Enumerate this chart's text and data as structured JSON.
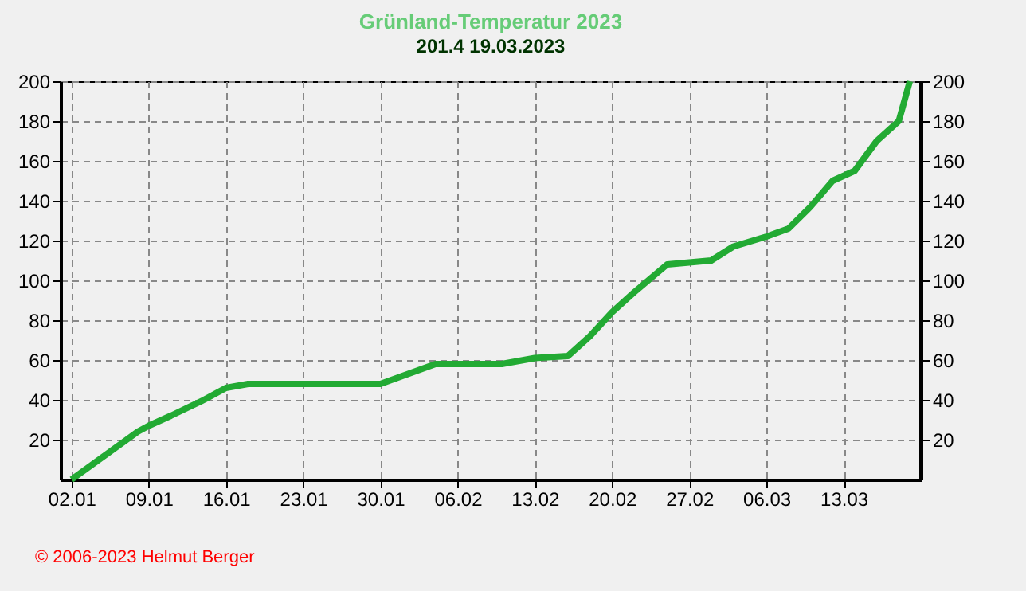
{
  "chart_data": {
    "type": "line",
    "title": "Grünland-Temperatur  2023",
    "subtitle": "201.4  19.03.2023",
    "x": [
      "2023-01-02",
      "2023-01-05",
      "2023-01-08",
      "2023-01-09",
      "2023-01-11",
      "2023-01-14",
      "2023-01-16",
      "2023-01-18",
      "2023-01-25",
      "2023-01-30",
      "2023-02-01",
      "2023-02-04",
      "2023-02-10",
      "2023-02-13",
      "2023-02-16",
      "2023-02-18",
      "2023-02-20",
      "2023-02-22",
      "2023-02-25",
      "2023-03-01",
      "2023-03-03",
      "2023-03-06",
      "2023-03-08",
      "2023-03-10",
      "2023-03-12",
      "2023-03-14",
      "2023-03-16",
      "2023-03-18",
      "2023-03-19"
    ],
    "series": [
      {
        "color": "#22aa33",
        "values": [
          0,
          12,
          24,
          27,
          32,
          40,
          46,
          48,
          48,
          48,
          52,
          58,
          58,
          61,
          62,
          72,
          84,
          94,
          108,
          110,
          117,
          122,
          126,
          137,
          150,
          155,
          170,
          180,
          200
        ]
      }
    ],
    "xlim": [
      "2023-01-01",
      "2023-03-20"
    ],
    "xticks": [
      {
        "value": "2023-01-02",
        "label": "02.01"
      },
      {
        "value": "2023-01-09",
        "label": "09.01"
      },
      {
        "value": "2023-01-16",
        "label": "16.01"
      },
      {
        "value": "2023-01-23",
        "label": "23.01"
      },
      {
        "value": "2023-01-30",
        "label": "30.01"
      },
      {
        "value": "2023-02-06",
        "label": "06.02"
      },
      {
        "value": "2023-02-13",
        "label": "13.02"
      },
      {
        "value": "2023-02-20",
        "label": "20.02"
      },
      {
        "value": "2023-02-27",
        "label": "27.02"
      },
      {
        "value": "2023-03-06",
        "label": "06.03"
      },
      {
        "value": "2023-03-13",
        "label": "13.03"
      }
    ],
    "ylim": [
      0,
      200
    ],
    "yticks": [
      20,
      40,
      60,
      80,
      100,
      120,
      140,
      160,
      180,
      200
    ],
    "y2lim": [
      0,
      200
    ],
    "y2ticks": [
      20,
      40,
      60,
      80,
      100,
      120,
      140,
      160,
      180,
      200
    ],
    "grid": true,
    "line_style": "solid",
    "annotations": [
      "© 2006-2023  Helmut Berger"
    ]
  }
}
